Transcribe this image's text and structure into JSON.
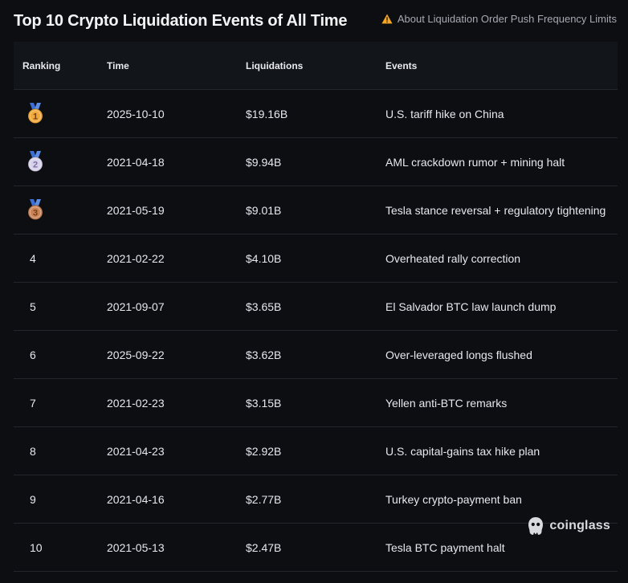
{
  "header": {
    "title": "Top 10 Crypto Liquidation Events of All Time",
    "notice_label": "About Liquidation Order Push Frequency Limits"
  },
  "table": {
    "columns": [
      "Ranking",
      "Time",
      "Liquidations",
      "Events"
    ],
    "rows": [
      {
        "rank": "1",
        "medal": "gold",
        "time": "2025-10-10",
        "liquidations": "$19.16B",
        "event": "U.S. tariff hike on China"
      },
      {
        "rank": "2",
        "medal": "silver",
        "time": "2021-04-18",
        "liquidations": "$9.94B",
        "event": "AML crackdown rumor + mining halt"
      },
      {
        "rank": "3",
        "medal": "bronze",
        "time": "2021-05-19",
        "liquidations": "$9.01B",
        "event": "Tesla stance reversal + regulatory tightening"
      },
      {
        "rank": "4",
        "time": "2021-02-22",
        "liquidations": "$4.10B",
        "event": "Overheated rally correction"
      },
      {
        "rank": "5",
        "time": "2021-09-07",
        "liquidations": "$3.65B",
        "event": "El Salvador BTC law launch dump"
      },
      {
        "rank": "6",
        "time": "2025-09-22",
        "liquidations": "$3.62B",
        "event": "Over-leveraged longs flushed"
      },
      {
        "rank": "7",
        "time": "2021-02-23",
        "liquidations": "$3.15B",
        "event": "Yellen anti-BTC remarks"
      },
      {
        "rank": "8",
        "time": "2021-04-23",
        "liquidations": "$2.92B",
        "event": "U.S. capital-gains tax hike plan"
      },
      {
        "rank": "9",
        "time": "2021-04-16",
        "liquidations": "$2.77B",
        "event": "Turkey crypto-payment ban"
      },
      {
        "rank": "10",
        "time": "2021-05-13",
        "liquidations": "$2.47B",
        "event": "Tesla BTC payment halt"
      }
    ]
  },
  "watermark": {
    "label": "coinglass"
  },
  "colors": {
    "background": "#0c0e12",
    "header_row": "#121519",
    "divider": "#23262d",
    "warning": "#f5a623",
    "medal_ribbon": "#3b6fd4",
    "gold": "#f0a93a",
    "silver": "#d7d2ea",
    "bronze": "#c98358"
  },
  "icons": {
    "notice": "warning-icon",
    "medal": "medal-icon",
    "watermark": "coinglass-logo-icon"
  }
}
